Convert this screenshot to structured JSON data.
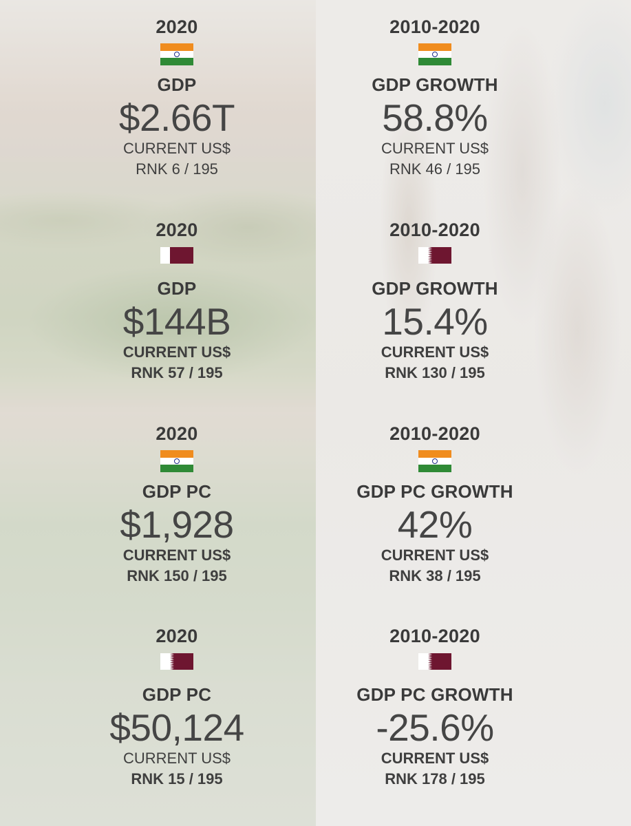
{
  "cells": [
    {
      "year": "2020",
      "flag": "india-flag",
      "metric": "GDP",
      "value": "$2.66T",
      "unit": "CURRENT US$",
      "rank": "RNK 6 / 195"
    },
    {
      "year": "2010-2020",
      "flag": "india-flag",
      "metric": "GDP GROWTH",
      "value": "58.8%",
      "unit": "CURRENT US$",
      "rank": "RNK 46 / 195"
    },
    {
      "year": "2020",
      "flag": "qatar-flag",
      "metric": "GDP",
      "value": "$144B",
      "unit": "CURRENT US$",
      "rank": "RNK 57 / 195"
    },
    {
      "year": "2010-2020",
      "flag": "qatar-flag",
      "metric": "GDP GROWTH",
      "value": "15.4%",
      "unit": "CURRENT US$",
      "rank": "RNK 130 / 195"
    },
    {
      "year": "2020",
      "flag": "india-flag",
      "metric": "GDP PC",
      "value": "$1,928",
      "unit": "CURRENT US$",
      "rank": "RNK 150 / 195"
    },
    {
      "year": "2010-2020",
      "flag": "india-flag",
      "metric": "GDP PC GROWTH",
      "value": "42%",
      "unit": "CURRENT US$",
      "rank": "RNK 38 / 195"
    },
    {
      "year": "2020",
      "flag": "qatar-flag",
      "metric": "GDP PC",
      "value": "$50,124",
      "unit": "CURRENT US$",
      "rank": "RNK 15 / 195"
    },
    {
      "year": "2010-2020",
      "flag": "qatar-flag",
      "metric": "GDP PC GROWTH",
      "value": "-25.6%",
      "unit": "CURRENT US$",
      "rank": "RNK 178 / 195"
    }
  ],
  "colors": {
    "text": "#3a3a3a",
    "india_saffron": "#f08c1e",
    "india_green": "#2f8a36",
    "india_chakra": "#1c2a86",
    "qatar_maroon": "#6e1630"
  }
}
